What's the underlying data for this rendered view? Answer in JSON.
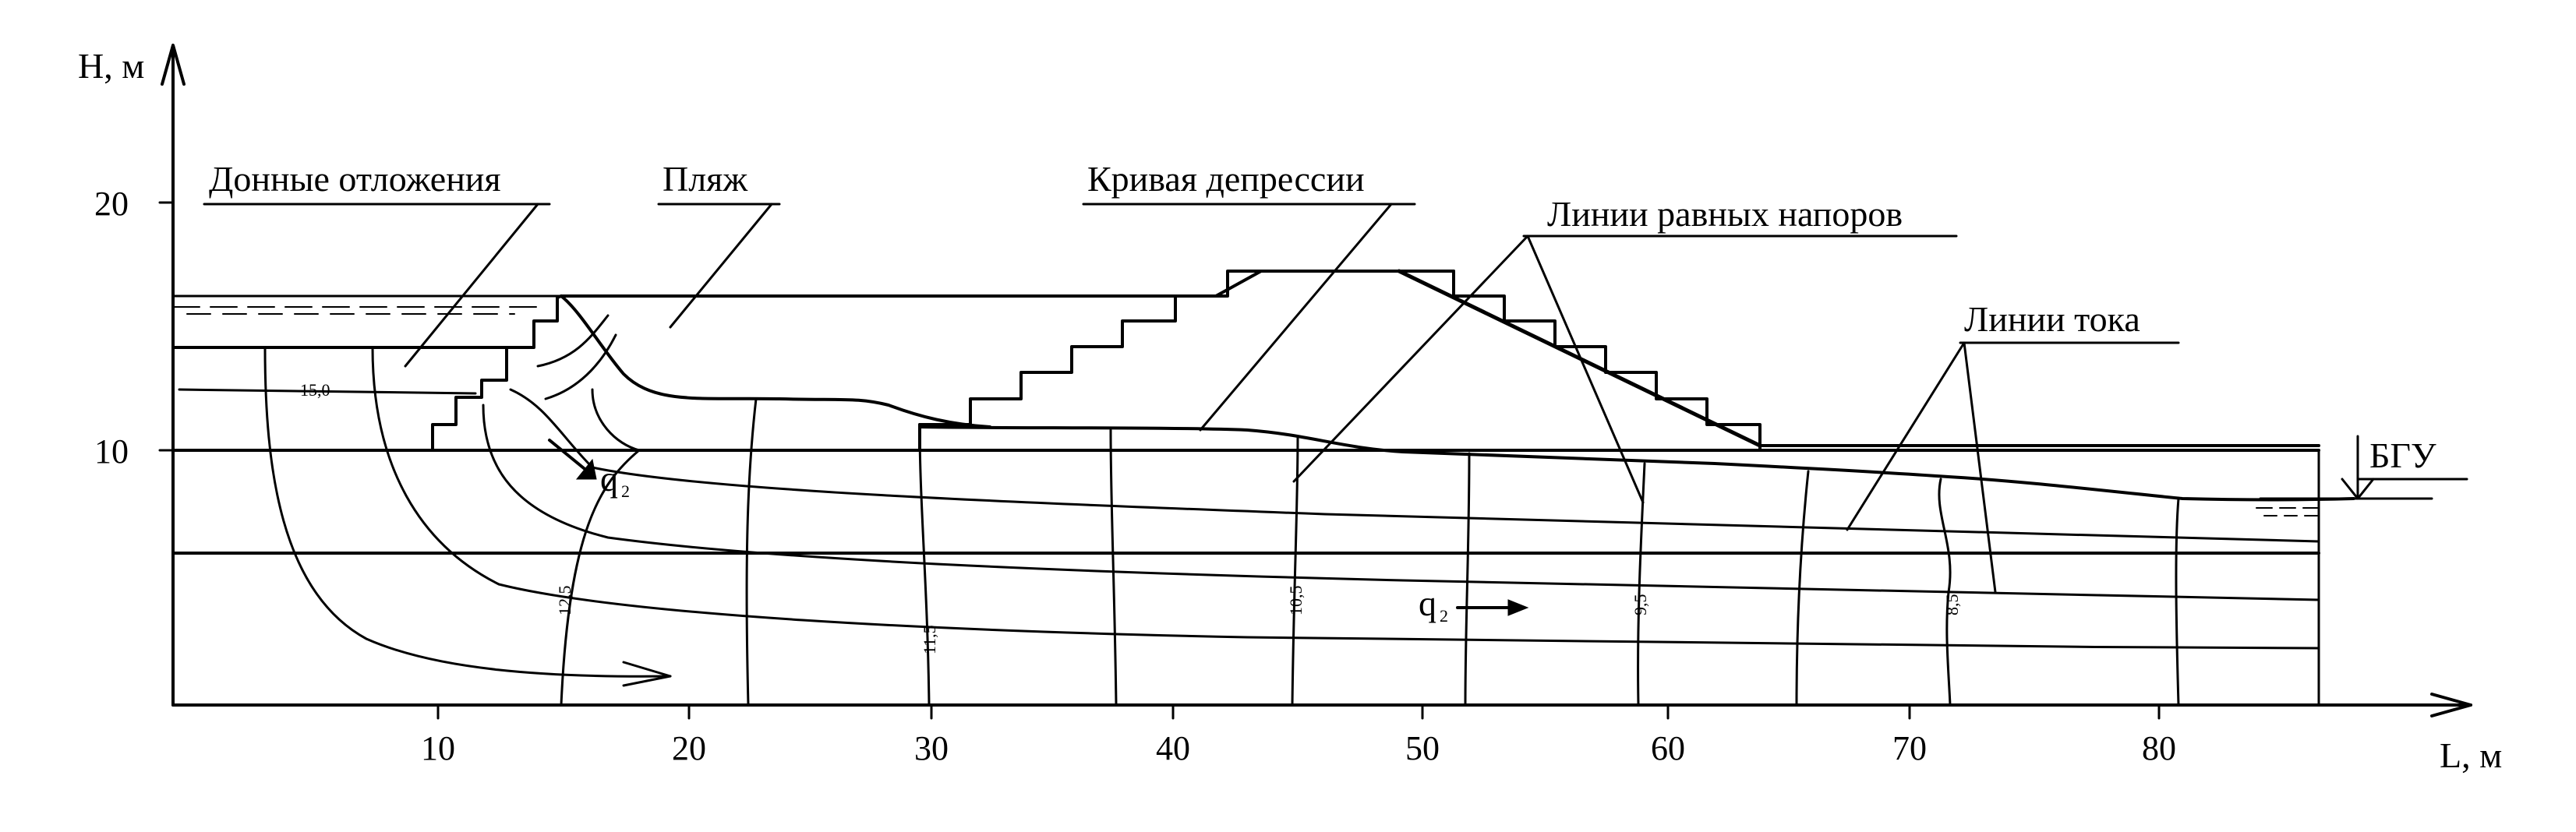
{
  "axes": {
    "y_label": "H, м",
    "x_label": "L, м",
    "y_ticks": [
      "20",
      "10"
    ],
    "x_ticks": [
      "10",
      "20",
      "30",
      "40",
      "50",
      "60",
      "70",
      "80"
    ]
  },
  "labels": {
    "bottom_sediments": "Донные отложения",
    "beach": "Пляж",
    "depression_curve": "Кривая депрессии",
    "equal_head_lines": "Линии равных напоров",
    "flow_lines": "Линии тока",
    "bgu": "БГУ",
    "q2_top": "q",
    "q2_top_sub": "2",
    "q2_bottom": "q",
    "q2_bottom_sub": "2"
  },
  "head_values": [
    "15,0",
    "12,5",
    "11,5",
    "10,5",
    "9,5",
    "8,5"
  ]
}
